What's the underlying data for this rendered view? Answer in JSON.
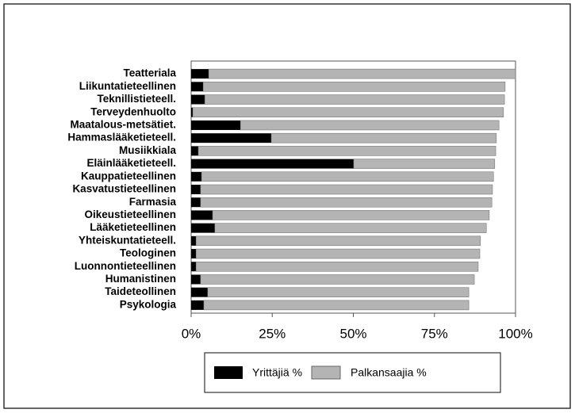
{
  "chart_data": {
    "type": "stacked-bar-horizontal",
    "categories": [
      "Teatteriala",
      "Liikuntatieteellinen",
      "Teknillistieteell.",
      "Terveydenhuolto",
      "Maatalous-metsätiet.",
      "Hammaslääketieteell.",
      "Musiikkiala",
      "Eläinlääketieteell.",
      "Kauppatieteellinen",
      "Kasvatustieteellinen",
      "Farmasia",
      "Oikeustieteellinen",
      "Lääketieteellinen",
      "Yhteiskuntatieteell.",
      "Teologinen",
      "Luonnontieteellinen",
      "Humanistinen",
      "Taideteollinen",
      "Psykologia"
    ],
    "series": [
      {
        "name": "Yrittäjiä %",
        "color": "#000000",
        "values": [
          5.4,
          3.7,
          4.2,
          0.5,
          15.2,
          24.7,
          2.2,
          50.1,
          3.2,
          2.9,
          2.9,
          6.6,
          7.3,
          1.5,
          1.5,
          1.5,
          2.9,
          5.1,
          3.9
        ]
      },
      {
        "name": "Palkansaajia %",
        "color": "#b4b4b4",
        "values": [
          94.6,
          93.1,
          92.4,
          95.8,
          79.7,
          69.4,
          91.7,
          43.5,
          90.0,
          90.0,
          89.8,
          85.3,
          83.7,
          87.7,
          87.5,
          87.0,
          84.4,
          80.5,
          81.7
        ]
      }
    ],
    "xlim": [
      0,
      100
    ],
    "xticks": [
      {
        "value": 0,
        "label": "0%"
      },
      {
        "value": 25,
        "label": "25%"
      },
      {
        "value": 50,
        "label": "50%"
      },
      {
        "value": 75,
        "label": "75%"
      },
      {
        "value": 100,
        "label": "100%"
      }
    ],
    "legend": "bottom"
  }
}
